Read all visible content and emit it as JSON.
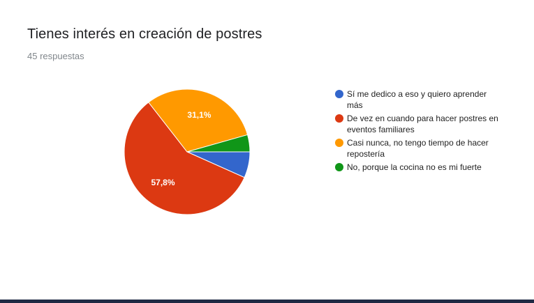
{
  "header": {
    "title": "Tienes interés en creación de postres",
    "responses": "45 respuestas"
  },
  "colors": {
    "blue": "#3366cc",
    "red": "#dc3912",
    "orange": "#ff9900",
    "green": "#109618",
    "footer_bar": "#1f2a44"
  },
  "chart_data": {
    "type": "pie",
    "title": "Tienes interés en creación de postres",
    "legend_position": "right",
    "series": [
      {
        "name": "Sí me dedico a eso y quiero aprender más",
        "value": 6.7,
        "label": "",
        "color": "#3366cc"
      },
      {
        "name": "De vez en cuando para hacer postres en eventos familiares",
        "value": 57.8,
        "label": "57,8%",
        "color": "#dc3912"
      },
      {
        "name": "Casi nunca, no tengo tiempo de hacer repostería",
        "value": 31.1,
        "label": "31,1%",
        "color": "#ff9900"
      },
      {
        "name": "No, porque la cocina no es mi fuerte",
        "value": 4.4,
        "label": "",
        "color": "#109618"
      }
    ]
  }
}
